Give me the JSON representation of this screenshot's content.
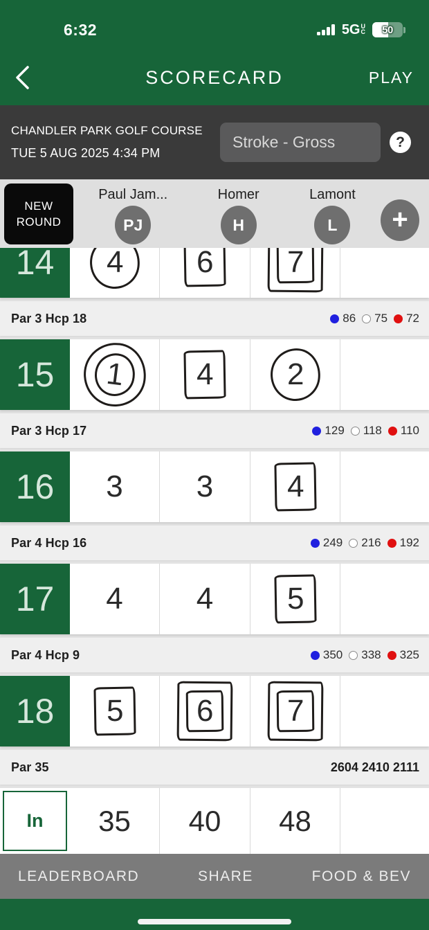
{
  "status_bar": {
    "time": "6:32",
    "network": "5G",
    "network_sub": "UC",
    "battery_percent": "50"
  },
  "header": {
    "title": "SCORECARD",
    "play_label": "PLAY"
  },
  "round_info": {
    "course": "CHANDLER PARK GOLF COURSE",
    "datetime": "TUE 5 AUG 2025 4:34 PM",
    "scoring_mode": "Stroke - Gross",
    "help_glyph": "?"
  },
  "players_bar": {
    "new_round_line1": "NEW",
    "new_round_line2": "ROUND",
    "players": [
      {
        "name": "Paul Jam...",
        "initials": "PJ"
      },
      {
        "name": "Homer",
        "initials": "H"
      },
      {
        "name": "Lamont",
        "initials": "L"
      }
    ],
    "add_glyph": "+"
  },
  "scorecard": {
    "tee_colors": {
      "blue": "#2020DF",
      "white": "#FFFFFF",
      "red": "#E01010"
    },
    "rows": [
      {
        "type": "hole",
        "number": "14",
        "partial": true,
        "scores": [
          {
            "value": "4",
            "mark": "circle"
          },
          {
            "value": "6",
            "mark": "box"
          },
          {
            "value": "7",
            "mark": "double-box"
          },
          {
            "value": "",
            "mark": "none"
          }
        ]
      },
      {
        "type": "info",
        "label": "Par 3 Hcp 18",
        "tees": [
          {
            "shape": "dot",
            "color": "#2020DF",
            "value": "86"
          },
          {
            "shape": "ring",
            "color": "#FFFFFF",
            "value": "75"
          },
          {
            "shape": "dot",
            "color": "#E01010",
            "value": "72"
          }
        ]
      },
      {
        "type": "hole",
        "number": "15",
        "scores": [
          {
            "value": "1",
            "mark": "double-circle"
          },
          {
            "value": "4",
            "mark": "box"
          },
          {
            "value": "2",
            "mark": "circle"
          },
          {
            "value": "",
            "mark": "none"
          }
        ]
      },
      {
        "type": "info",
        "label": "Par 3 Hcp 17",
        "tees": [
          {
            "shape": "dot",
            "color": "#2020DF",
            "value": "129"
          },
          {
            "shape": "ring",
            "color": "#FFFFFF",
            "value": "118"
          },
          {
            "shape": "dot",
            "color": "#E01010",
            "value": "110"
          }
        ]
      },
      {
        "type": "hole",
        "number": "16",
        "scores": [
          {
            "value": "3",
            "mark": "none"
          },
          {
            "value": "3",
            "mark": "none"
          },
          {
            "value": "4",
            "mark": "box"
          },
          {
            "value": "",
            "mark": "none"
          }
        ]
      },
      {
        "type": "info",
        "label": "Par 4 Hcp 16",
        "tees": [
          {
            "shape": "dot",
            "color": "#2020DF",
            "value": "249"
          },
          {
            "shape": "ring",
            "color": "#FFFFFF",
            "value": "216"
          },
          {
            "shape": "dot",
            "color": "#E01010",
            "value": "192"
          }
        ]
      },
      {
        "type": "hole",
        "number": "17",
        "scores": [
          {
            "value": "4",
            "mark": "none"
          },
          {
            "value": "4",
            "mark": "none"
          },
          {
            "value": "5",
            "mark": "box"
          },
          {
            "value": "",
            "mark": "none"
          }
        ]
      },
      {
        "type": "info",
        "label": "Par 4 Hcp 9",
        "tees": [
          {
            "shape": "dot",
            "color": "#2020DF",
            "value": "350"
          },
          {
            "shape": "ring",
            "color": "#FFFFFF",
            "value": "338"
          },
          {
            "shape": "dot",
            "color": "#E01010",
            "value": "325"
          }
        ]
      },
      {
        "type": "hole",
        "number": "18",
        "scores": [
          {
            "value": "5",
            "mark": "box"
          },
          {
            "value": "6",
            "mark": "double-box"
          },
          {
            "value": "7",
            "mark": "double-box"
          },
          {
            "value": "",
            "mark": "none"
          }
        ]
      },
      {
        "type": "totals",
        "label": "Par 35",
        "distances": "2604 2410 2111"
      },
      {
        "type": "in",
        "label": "In",
        "scores": [
          "35",
          "40",
          "48",
          ""
        ]
      }
    ]
  },
  "bottom_bar": {
    "items": [
      "LEADERBOARD",
      "SHARE",
      "FOOD & BEV"
    ]
  }
}
